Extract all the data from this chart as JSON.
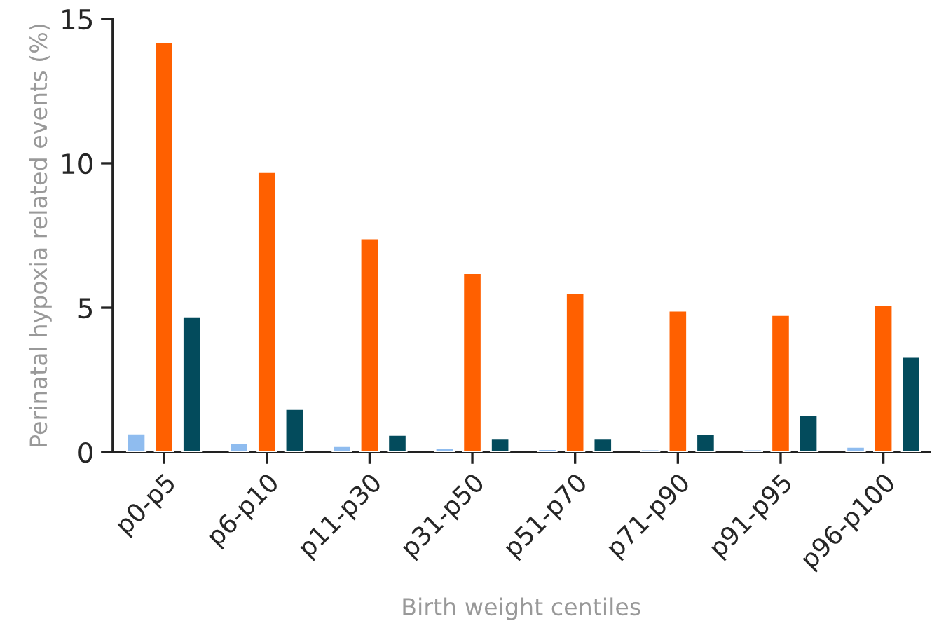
{
  "chart_data": {
    "type": "bar",
    "xlabel": "Birth weight centiles",
    "ylabel": "Perinatal hypoxia related events (%)",
    "categories": [
      "p0-p5",
      "p6-p10",
      "p11-p30",
      "p31-p50",
      "p51-p70",
      "p71-p90",
      "p91-p95",
      "p96-p100"
    ],
    "series": [
      {
        "color": "#8fbcef",
        "values": [
          0.65,
          0.31,
          0.21,
          0.16,
          0.11,
          0.1,
          0.1,
          0.19
        ]
      },
      {
        "color": "#ff6000",
        "values": [
          14.2,
          9.7,
          7.4,
          6.2,
          5.5,
          4.9,
          4.75,
          5.1
        ]
      },
      {
        "color": "#034b5c",
        "values": [
          4.7,
          1.5,
          0.6,
          0.47,
          0.47,
          0.63,
          1.28,
          3.3
        ]
      }
    ],
    "ylim": [
      0,
      15
    ],
    "yticks": [
      0,
      5,
      10,
      15
    ],
    "grid": false,
    "legend": false
  }
}
